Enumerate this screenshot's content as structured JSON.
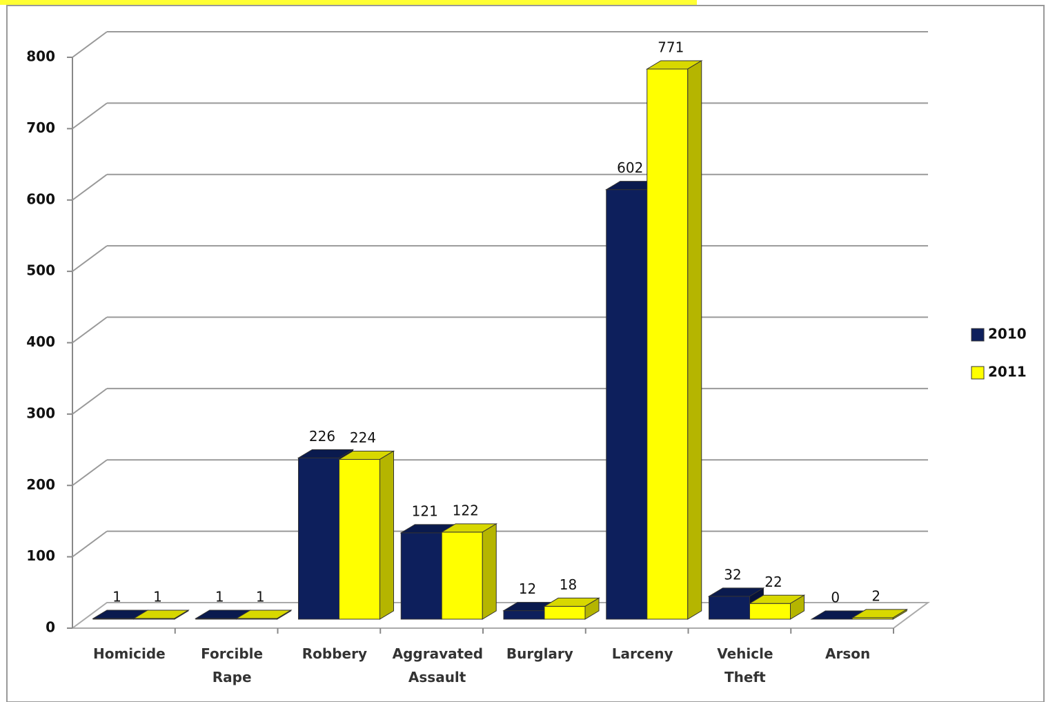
{
  "chart_data": {
    "type": "bar3d",
    "categories": [
      "Homicide",
      "Forcible Rape",
      "Robbery",
      "Aggravated Assault",
      "Burglary",
      "Larceny",
      "Vehicle Theft",
      "Arson"
    ],
    "series": [
      {
        "name": "2010",
        "color": "#0d1f5c",
        "values": [
          1,
          1,
          226,
          121,
          12,
          602,
          32,
          0
        ]
      },
      {
        "name": "2011",
        "color": "#ffff00",
        "values": [
          1,
          1,
          224,
          122,
          18,
          771,
          22,
          2
        ]
      }
    ],
    "ylim": [
      0,
      800
    ],
    "yticks": [
      0,
      100,
      200,
      300,
      400,
      500,
      600,
      700,
      800
    ],
    "grid": true,
    "legend": "right"
  }
}
